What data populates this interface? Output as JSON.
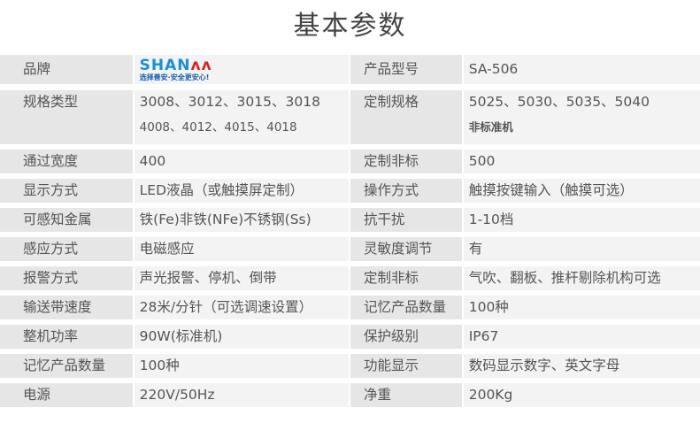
{
  "title": "基本参数",
  "brand": {
    "label": "品牌",
    "logo_text": "SHANAN",
    "logo_slogan": "选择善安·安全更安心!",
    "model_label": "产品型号",
    "model_value": "SA-506"
  },
  "spec": {
    "label": "规格类型",
    "line1": "3008、3012、3015、3018",
    "line2": "4008、4012、4015、4018",
    "custom_label": "定制规格",
    "custom_line1": "5025、5030、5035、5040",
    "custom_line2": "非标准机"
  },
  "rows": [
    {
      "l1": "通过宽度",
      "v1": "400",
      "l2": "定制非标",
      "v2": "500"
    },
    {
      "l1": "显示方式",
      "v1": "LED液晶（或触摸屏定制）",
      "l2": "操作方式",
      "v2": "触摸按键输入（触摸可选）"
    },
    {
      "l1": "可感知金属",
      "v1": "铁(Fe)非铁(NFe)不锈钢(Ss)",
      "l2": "抗干扰",
      "v2": "1-10档"
    },
    {
      "l1": "感应方式",
      "v1": "电磁感应",
      "l2": "灵敏度调节",
      "v2": "有"
    },
    {
      "l1": "报警方式",
      "v1": "声光报警、停机、倒带",
      "l2": "定制非标",
      "v2": "气吹、翻板、推杆剔除机构可选"
    },
    {
      "l1": "输送带速度",
      "v1": "28米/分针（可选调速设置）",
      "l2": "记忆产品数量",
      "v2": "100种"
    },
    {
      "l1": "整机功率",
      "v1": "90W(标准机)",
      "l2": "保护级别",
      "v2": "IP67"
    },
    {
      "l1": "记忆产品数量",
      "v1": "100种",
      "l2": "功能显示",
      "v2": "数码显示数字、英文字母"
    },
    {
      "l1": "电源",
      "v1": "220V/50Hz",
      "l2": "净重",
      "v2": "200Kg"
    }
  ]
}
